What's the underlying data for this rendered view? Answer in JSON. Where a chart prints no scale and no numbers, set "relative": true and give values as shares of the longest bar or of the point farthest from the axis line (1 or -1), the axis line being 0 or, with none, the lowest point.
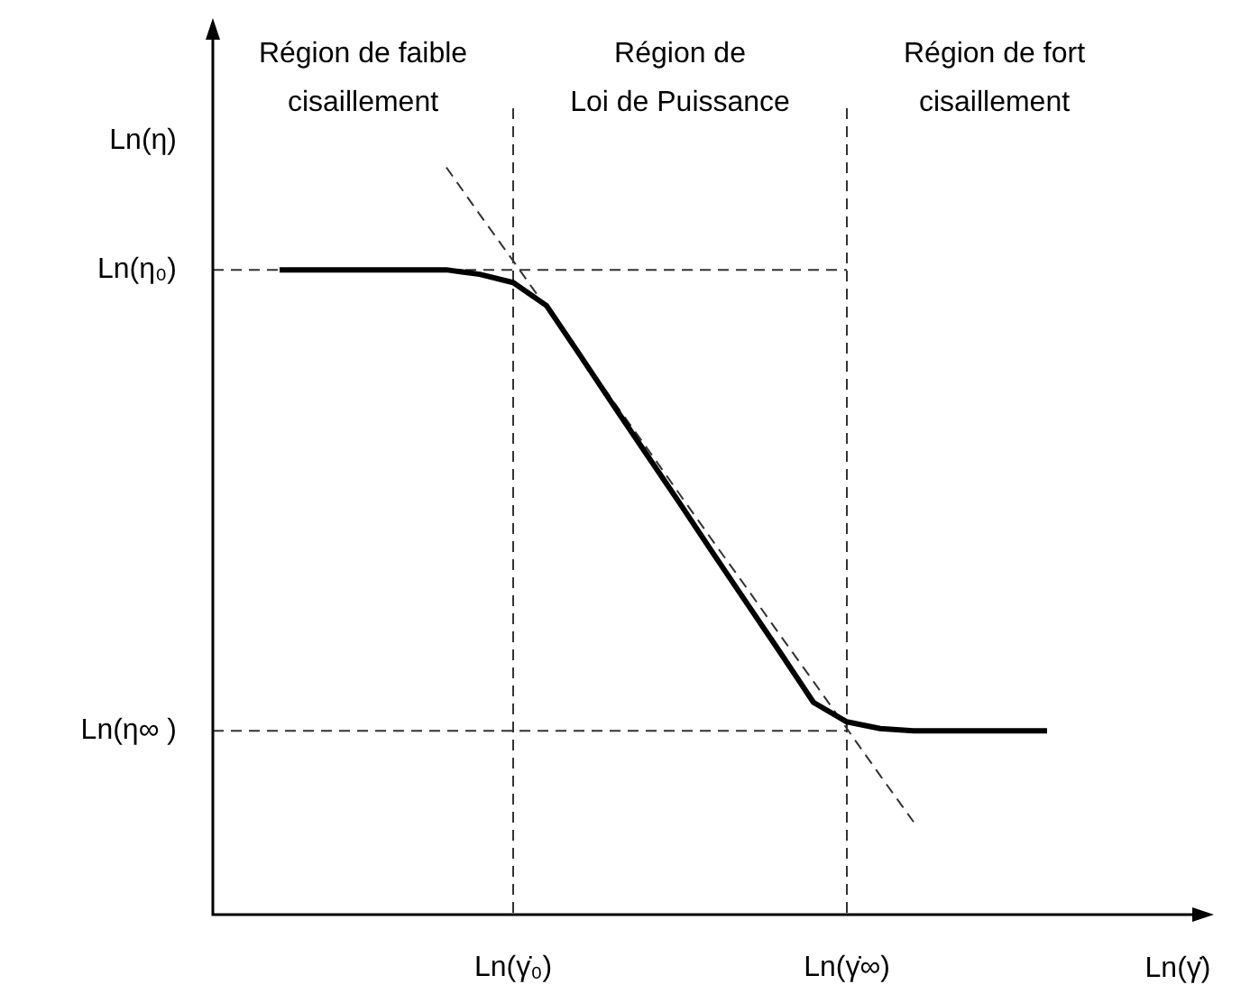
{
  "chart_data": {
    "type": "line",
    "relative": true,
    "ylabel": "Ln(η)",
    "xlabel": "Ln(γ̇)",
    "categories": [
      null,
      null,
      null,
      null,
      null,
      null,
      null,
      null,
      null,
      "Ln(γ̇₀)",
      null,
      null,
      null,
      null,
      null,
      null,
      null,
      null,
      null,
      "Ln(γ̇∞)",
      null,
      null,
      null,
      null,
      null,
      null,
      null,
      null,
      null,
      null,
      null
    ],
    "annotations": [
      "Région de faible\ncisaillement",
      "Région de\nLoi de Puissance",
      "Région de fort\ncisaillement"
    ],
    "series": [
      {
        "color": "#000000",
        "values": [
          null,
          null,
          0.863,
          0.863,
          0.863,
          0.863,
          0.863,
          0.863,
          0.857,
          0.846,
          0.815,
          0.749,
          0.682,
          0.616,
          0.55,
          0.483,
          0.417,
          0.351,
          0.284,
          0.258,
          0.249,
          0.246,
          0.246,
          0.246,
          0.246,
          0.246,
          null,
          null,
          null,
          null,
          null
        ]
      },
      {
        "type": "line",
        "line_style": "dashed",
        "color": "#333333",
        "values": [
          null,
          null,
          null,
          null,
          null,
          null,
          null,
          1.0,
          0.937,
          0.875,
          0.812,
          0.75,
          0.687,
          0.625,
          0.562,
          0.499,
          0.437,
          0.374,
          0.312,
          0.249,
          0.186,
          0.124,
          null,
          null,
          null,
          null,
          null,
          null,
          null,
          null,
          null
        ]
      }
    ],
    "ref_lines": [
      {
        "axis": "y",
        "value": 0.863,
        "label": "Ln(η₀)",
        "line_style": "dashed",
        "color": "#333333"
      },
      {
        "axis": "y",
        "value": 0.246,
        "label": "Ln(η∞ )",
        "line_style": "dashed",
        "color": "#333333"
      },
      {
        "axis": "x",
        "value": "Ln(γ̇₀)",
        "line_style": "dashed",
        "color": "#333333"
      },
      {
        "axis": "x",
        "value": "Ln(γ̇∞)",
        "line_style": "dashed",
        "color": "#333333"
      }
    ],
    "legend": false,
    "grid": false,
    "marker": "none",
    "line_style": "solid"
  }
}
